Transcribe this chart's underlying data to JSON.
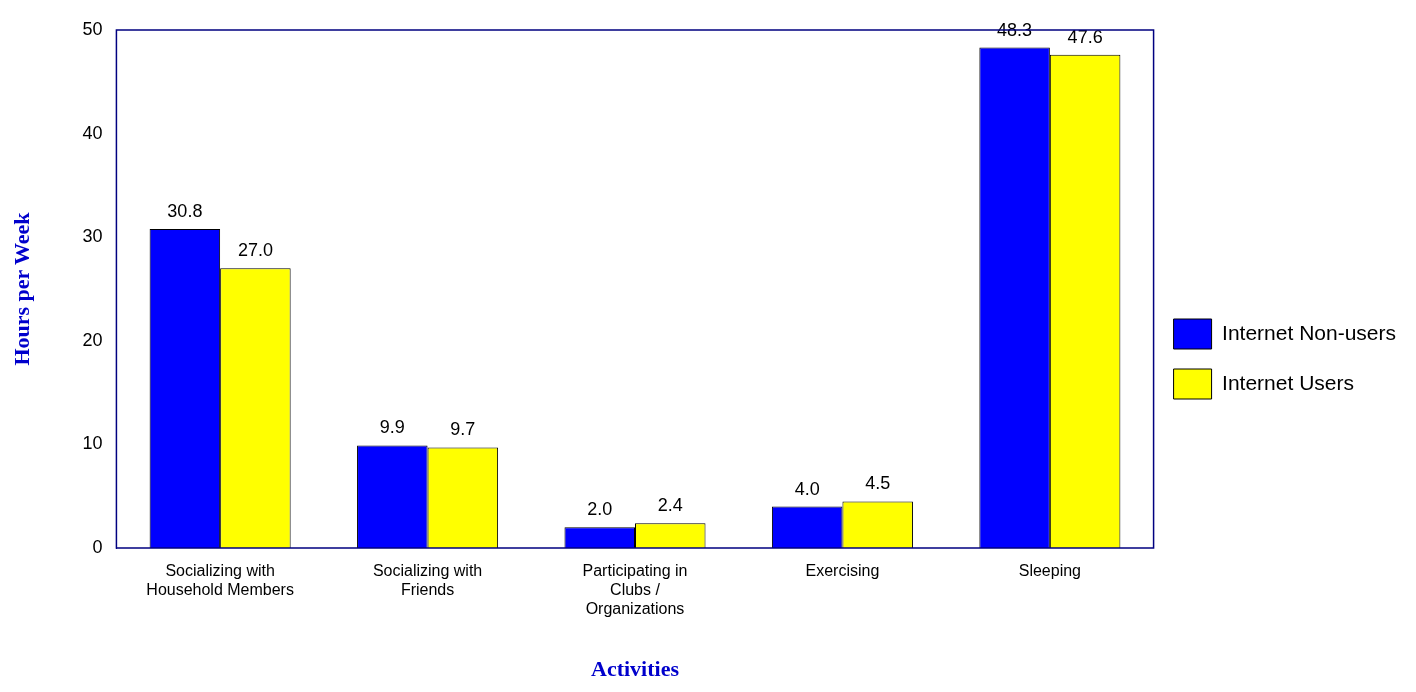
{
  "chart_data": {
    "type": "bar",
    "xlabel": "Activities",
    "ylabel": "Hours per Week",
    "categories": [
      "Socializing with Household Members",
      "Socializing with Friends",
      "Participating in Clubs / Organizations",
      "Exercising",
      "Sleeping"
    ],
    "series": [
      {
        "name": "Internet Non-users",
        "color": "#0000ff",
        "values": [
          30.8,
          9.9,
          2.0,
          4.0,
          48.3
        ],
        "value_labels": [
          "30.8",
          "9.9",
          "2.0",
          "4.0",
          "48.3"
        ]
      },
      {
        "name": "Internet Users",
        "color": "#ffff00",
        "values": [
          27.0,
          9.7,
          2.4,
          4.5,
          47.6
        ],
        "value_labels": [
          "27.0",
          "9.7",
          "2.4",
          "4.5",
          "47.6"
        ]
      }
    ],
    "ylim": [
      0,
      50
    ],
    "yticks": [
      0,
      10,
      20,
      30,
      40,
      50
    ],
    "grid": false,
    "legend": "right"
  }
}
